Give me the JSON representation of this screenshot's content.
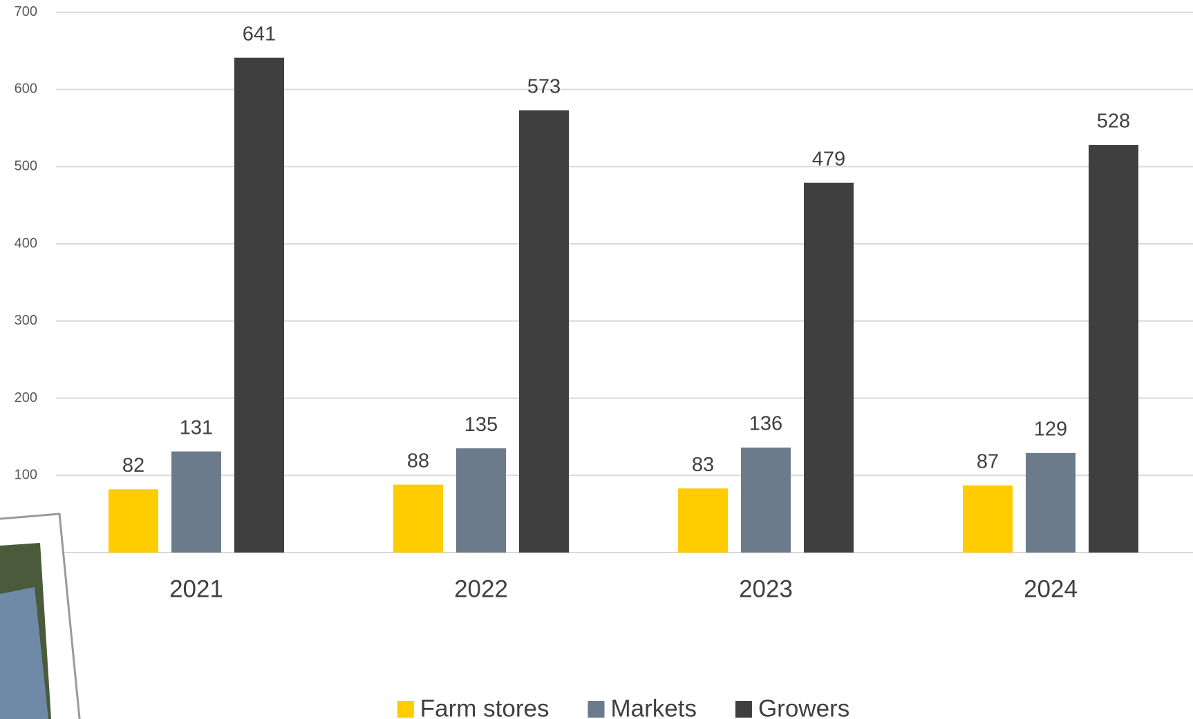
{
  "chart_data": {
    "type": "bar",
    "categories": [
      "2021",
      "2022",
      "2023",
      "2024"
    ],
    "series": [
      {
        "name": "Farm stores",
        "color": "#FFCC00",
        "values": [
          82,
          88,
          83,
          87
        ]
      },
      {
        "name": "Markets",
        "color": "#6B7B8C",
        "values": [
          131,
          135,
          136,
          129
        ]
      },
      {
        "name": "Growers",
        "color": "#3F3F3F",
        "values": [
          641,
          573,
          479,
          528
        ]
      }
    ],
    "ylim": [
      0,
      700
    ],
    "yticks": [
      0,
      100,
      200,
      300,
      400,
      500,
      600,
      700
    ],
    "grid": true,
    "legend": "bottom"
  }
}
